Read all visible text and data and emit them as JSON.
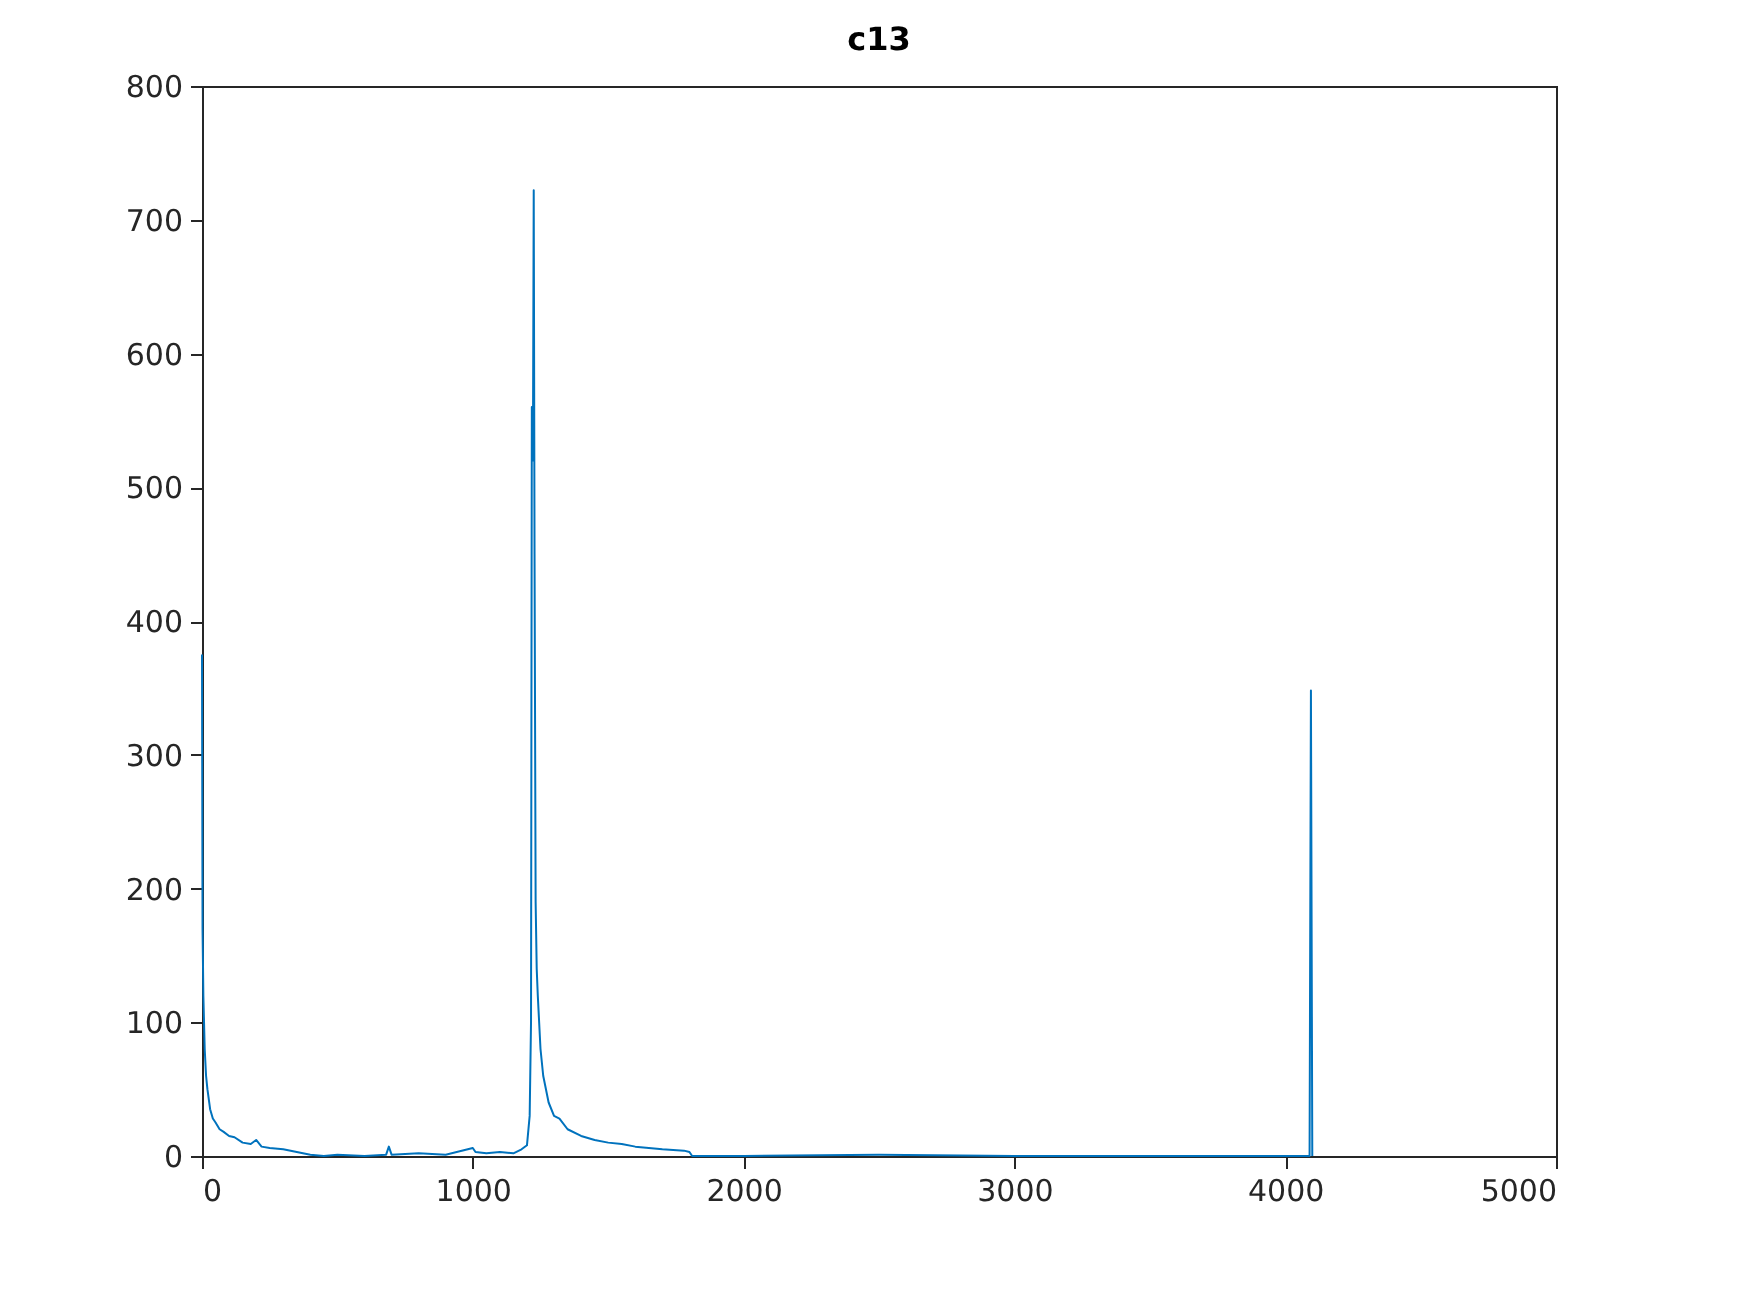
{
  "chart_data": {
    "type": "line",
    "title": "c13",
    "x": [
      0,
      2,
      5,
      10,
      15,
      20,
      30,
      40,
      50,
      65,
      80,
      100,
      120,
      150,
      180,
      200,
      220,
      250,
      300,
      350,
      400,
      450,
      500,
      600,
      680,
      690,
      700,
      800,
      900,
      1000,
      1010,
      1050,
      1100,
      1150,
      1180,
      1200,
      1210,
      1215,
      1218,
      1222,
      1225,
      1228,
      1232,
      1236,
      1240,
      1250,
      1260,
      1280,
      1300,
      1320,
      1350,
      1400,
      1450,
      1500,
      1550,
      1600,
      1700,
      1780,
      1800,
      1810,
      2000,
      2500,
      3000,
      3500,
      4000,
      4090,
      4095,
      4100
    ],
    "series": [
      {
        "color": "#0072bd",
        "values": [
          375,
          170,
          120,
          80,
          60,
          50,
          35,
          28,
          25,
          20,
          18,
          15,
          14,
          10,
          9,
          12,
          7,
          6,
          5,
          3,
          1,
          0,
          1,
          0,
          1,
          7,
          1,
          2,
          1,
          6,
          3,
          2,
          3,
          2,
          5,
          8,
          30,
          100,
          560,
          520,
          722,
          450,
          190,
          140,
          120,
          80,
          60,
          40,
          30,
          28,
          20,
          15,
          12,
          10,
          9,
          7,
          5,
          4,
          3,
          0,
          0,
          1,
          0,
          0,
          0,
          0,
          348,
          0
        ]
      }
    ],
    "xlim": [
      0,
      5000
    ],
    "xticks": [
      0,
      1000,
      2000,
      3000,
      4000,
      5000
    ],
    "ylim": [
      0,
      800
    ],
    "yticks": [
      0,
      100,
      200,
      300,
      400,
      500,
      600,
      700,
      800
    ],
    "grid": false,
    "marker": "none",
    "line_style": "solid"
  }
}
